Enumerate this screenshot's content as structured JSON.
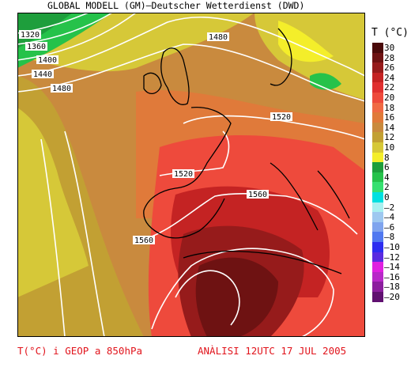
{
  "header": {
    "title": "GLOBAL MODELL (GM)–Deutscher Wetterdienst (DWD)"
  },
  "legend": {
    "unit_label": "T (°C)",
    "entries": [
      {
        "label": "30",
        "color": "#4a0a0a"
      },
      {
        "label": "28",
        "color": "#6e1212"
      },
      {
        "label": "26",
        "color": "#961b1b"
      },
      {
        "label": "24",
        "color": "#c42323"
      },
      {
        "label": "22",
        "color": "#e03030"
      },
      {
        "label": "20",
        "color": "#ee4a3c"
      },
      {
        "label": "18",
        "color": "#f06a44"
      },
      {
        "label": "16",
        "color": "#e07a3a"
      },
      {
        "label": "14",
        "color": "#c98a3e"
      },
      {
        "label": "12",
        "color": "#c2a033"
      },
      {
        "label": "10",
        "color": "#d6c838"
      },
      {
        "label": "8",
        "color": "#f4ee2a"
      },
      {
        "label": "6",
        "color": "#1e9e3c"
      },
      {
        "label": "4",
        "color": "#26c24a"
      },
      {
        "label": "2",
        "color": "#36e070"
      },
      {
        "label": "0",
        "color": "#00e0e0"
      },
      {
        "label": "–2",
        "color": "#a8f0f0"
      },
      {
        "label": "–4",
        "color": "#9ec8f0"
      },
      {
        "label": "–6",
        "color": "#7fa4ee"
      },
      {
        "label": "–8",
        "color": "#5078f0"
      },
      {
        "label": "–10",
        "color": "#2d2df0"
      },
      {
        "label": "–12",
        "color": "#5a2ae0"
      },
      {
        "label": "–14",
        "color": "#e020e0"
      },
      {
        "label": "–16",
        "color": "#b828c8"
      },
      {
        "label": "–18",
        "color": "#8c1e9e"
      },
      {
        "label": "–20",
        "color": "#601070"
      }
    ]
  },
  "isolines": {
    "labels": [
      "1320",
      "1360",
      "1400",
      "1440",
      "1480",
      "1480",
      "1520",
      "1520",
      "1560",
      "1560"
    ]
  },
  "footer": {
    "left": "T(°C) i GEOP a 850hPa",
    "right": "ANÀLISI 12UTC 17 JUL 2005"
  },
  "colors": {
    "footer_text": "#e1141c",
    "coastline": "#000000",
    "isoline": "#ffffff"
  }
}
